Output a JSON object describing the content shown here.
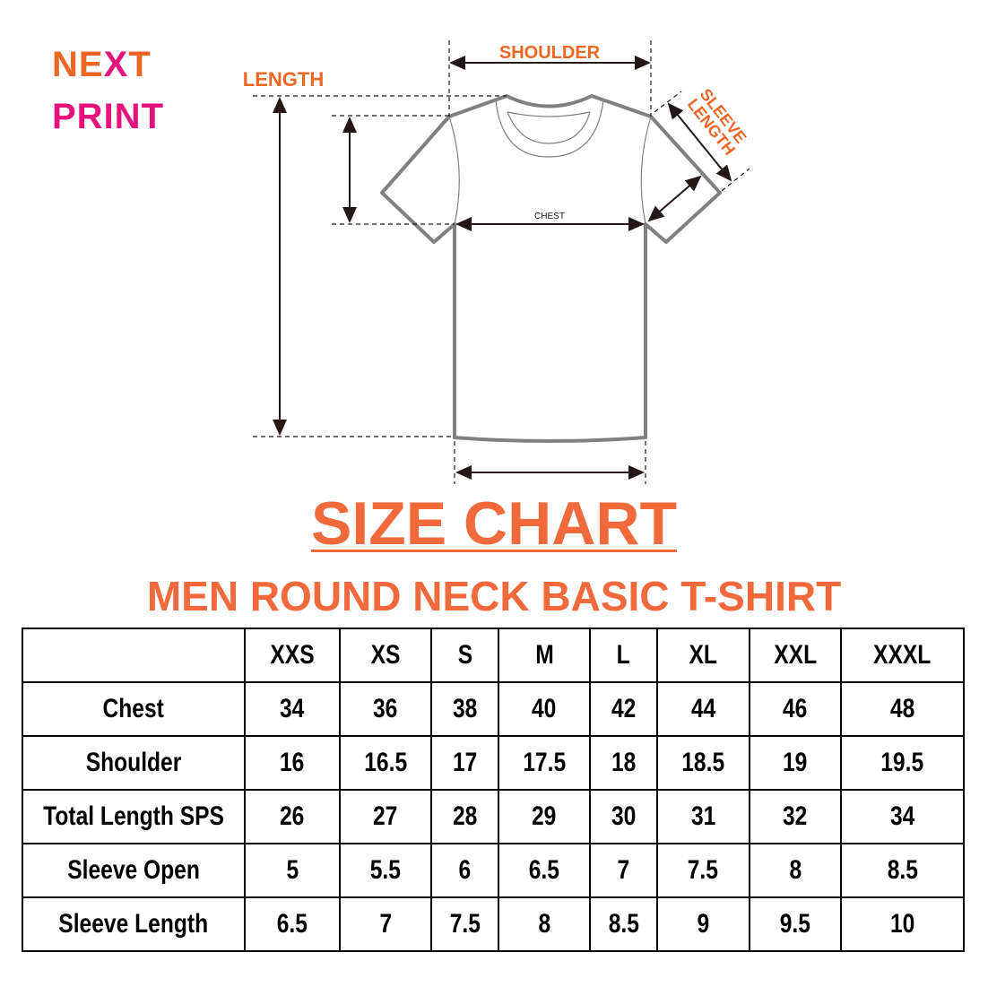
{
  "logo": {
    "line1_a": "NE",
    "line1_x": "X",
    "line1_b": "T",
    "line2": "PRINT"
  },
  "diagram": {
    "shoulder_label": "SHOULDER",
    "length_label": "LENGTH",
    "sleeve_label_1": "SLEEVE",
    "sleeve_label_2": "LENGTH",
    "chest_label": "CHEST"
  },
  "title": "SIZE CHART",
  "subtitle": "MEN ROUND NECK BASIC T-SHIRT",
  "colors": {
    "accent_orange": "#f26a3c",
    "logo_orange": "#ec6624",
    "logo_pink": "#e5127d"
  },
  "table": {
    "sizes": [
      "XXS",
      "XS",
      "S",
      "M",
      "L",
      "XL",
      "XXL",
      "XXXL"
    ],
    "rows": [
      {
        "label": "Chest",
        "values": [
          "34",
          "36",
          "38",
          "40",
          "42",
          "44",
          "46",
          "48"
        ]
      },
      {
        "label": "Shoulder",
        "values": [
          "16",
          "16.5",
          "17",
          "17.5",
          "18",
          "18.5",
          "19",
          "19.5"
        ]
      },
      {
        "label": "Total Length SPS",
        "values": [
          "26",
          "27",
          "28",
          "29",
          "30",
          "31",
          "32",
          "34"
        ]
      },
      {
        "label": "Sleeve Open",
        "values": [
          "5",
          "5.5",
          "6",
          "6.5",
          "7",
          "7.5",
          "8",
          "8.5"
        ]
      },
      {
        "label": "Sleeve Length",
        "values": [
          "6.5",
          "7",
          "7.5",
          "8",
          "8.5",
          "9",
          "9.5",
          "10"
        ]
      }
    ]
  }
}
